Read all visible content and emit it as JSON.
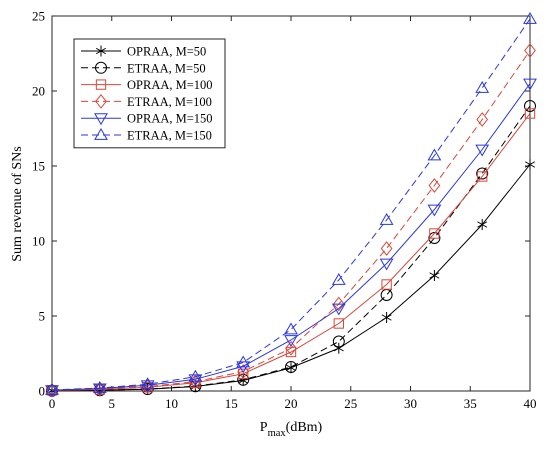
{
  "chart_data": {
    "type": "line",
    "xlabel_main": "P",
    "xlabel_sub": "max",
    "xlabel_rest": "(dBm)",
    "ylabel": "Sum revenue of SNs",
    "xlim": [
      0,
      40
    ],
    "ylim": [
      0,
      25
    ],
    "xticks": [
      0,
      5,
      10,
      15,
      20,
      25,
      30,
      35,
      40
    ],
    "yticks": [
      0,
      5,
      10,
      15,
      20,
      25
    ],
    "grid": false,
    "legend_position": "top-left",
    "x": [
      0,
      4,
      8,
      12,
      16,
      20,
      24,
      28,
      32,
      36,
      40
    ],
    "series": [
      {
        "name": "OPRAA, M=50",
        "color": "#000000",
        "dash": "solid",
        "marker": "star",
        "values": [
          0.02,
          0.05,
          0.12,
          0.3,
          0.7,
          1.55,
          2.85,
          4.9,
          7.7,
          11.1,
          15.1
        ]
      },
      {
        "name": "ETRAA, M=50",
        "color": "#000000",
        "dash": "dashed",
        "marker": "circle",
        "values": [
          0.02,
          0.05,
          0.13,
          0.32,
          0.75,
          1.6,
          3.3,
          6.4,
          10.2,
          14.5,
          19.0
        ]
      },
      {
        "name": "OPRAA, M=100",
        "color": "#d9453a",
        "dash": "solid",
        "marker": "square",
        "values": [
          0.04,
          0.1,
          0.25,
          0.55,
          1.15,
          2.6,
          4.5,
          7.1,
          10.5,
          14.3,
          18.5
        ]
      },
      {
        "name": "ETRAA, M=100",
        "color": "#d9453a",
        "dash": "dashed",
        "marker": "diamond",
        "values": [
          0.05,
          0.12,
          0.3,
          0.62,
          1.3,
          2.85,
          5.8,
          9.5,
          13.7,
          18.1,
          22.7
        ]
      },
      {
        "name": "OPRAA, M=150",
        "color": "#2a36e0",
        "dash": "solid",
        "marker": "triangle-down",
        "values": [
          0.06,
          0.17,
          0.38,
          0.78,
          1.65,
          3.4,
          5.5,
          8.5,
          12.1,
          16.1,
          20.5
        ]
      },
      {
        "name": "ETRAA, M=150",
        "color": "#2a36e0",
        "dash": "dashed",
        "marker": "triangle-up",
        "values": [
          0.07,
          0.2,
          0.45,
          0.95,
          1.9,
          4.1,
          7.4,
          11.4,
          15.7,
          20.2,
          24.8
        ]
      }
    ]
  }
}
